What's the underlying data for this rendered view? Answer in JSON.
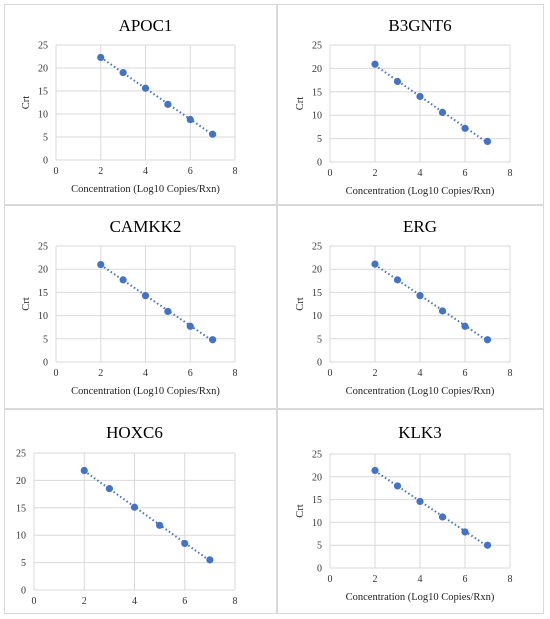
{
  "chart_data": [
    {
      "type": "scatter",
      "title": "APOC1",
      "xlabel": "Concentration (Log10 Copies/Rxn)",
      "ylabel": "Crt",
      "xlim": [
        0,
        8
      ],
      "ylim": [
        0,
        25
      ],
      "xticks": [
        "0",
        "2",
        "4",
        "6",
        "8"
      ],
      "yticks": [
        "0",
        "5",
        "10",
        "15",
        "20",
        "25"
      ],
      "grid": true,
      "trendline": "linear-dotted",
      "color": "#4472c4",
      "x": [
        2,
        3,
        4,
        5,
        6,
        7
      ],
      "y": [
        22.3,
        19.0,
        15.6,
        12.1,
        8.8,
        5.6
      ]
    },
    {
      "type": "scatter",
      "title": "B3GNT6",
      "xlabel": "Concentration (Log10 Copies/Rxn)",
      "ylabel": "Crt",
      "xlim": [
        0,
        8
      ],
      "ylim": [
        0,
        25
      ],
      "xticks": [
        "0",
        "2",
        "4",
        "6",
        "8"
      ],
      "yticks": [
        "0",
        "5",
        "10",
        "15",
        "20",
        "25"
      ],
      "grid": true,
      "trendline": "linear-dotted",
      "color": "#4472c4",
      "x": [
        2,
        3,
        4,
        5,
        6,
        7
      ],
      "y": [
        20.9,
        17.2,
        14.0,
        10.6,
        7.2,
        4.4
      ]
    },
    {
      "type": "scatter",
      "title": "CAMKK2",
      "xlabel": "Concentration (Log10 Copies/Rxn)",
      "ylabel": "Crt",
      "xlim": [
        0,
        8
      ],
      "ylim": [
        0,
        25
      ],
      "xticks": [
        "0",
        "2",
        "4",
        "6",
        "8"
      ],
      "yticks": [
        "0",
        "5",
        "10",
        "15",
        "20",
        "25"
      ],
      "grid": true,
      "trendline": "linear-dotted",
      "color": "#4472c4",
      "x": [
        2,
        3,
        4,
        5,
        6,
        7
      ],
      "y": [
        21.0,
        17.7,
        14.3,
        10.9,
        7.7,
        4.8
      ]
    },
    {
      "type": "scatter",
      "title": "ERG",
      "xlabel": "Concentration (Log10 Copies/Rxn)",
      "ylabel": "Crt",
      "xlim": [
        0,
        8
      ],
      "ylim": [
        0,
        25
      ],
      "xticks": [
        "0",
        "2",
        "4",
        "6",
        "8"
      ],
      "yticks": [
        "0",
        "5",
        "10",
        "15",
        "20",
        "25"
      ],
      "grid": true,
      "trendline": "linear-dotted",
      "color": "#4472c4",
      "x": [
        2,
        3,
        4,
        5,
        6,
        7
      ],
      "y": [
        21.1,
        17.7,
        14.3,
        11.0,
        7.7,
        4.8
      ]
    },
    {
      "type": "scatter",
      "title": "HOXC6",
      "xlabel": "",
      "ylabel": "",
      "xlim": [
        0,
        8
      ],
      "ylim": [
        0,
        25
      ],
      "xticks": [
        "0",
        "2",
        "4",
        "6",
        "8"
      ],
      "yticks": [
        "0",
        "5",
        "10",
        "15",
        "20",
        "25"
      ],
      "grid": true,
      "trendline": "linear-dotted",
      "color": "#4472c4",
      "x": [
        2,
        3,
        4,
        5,
        6,
        7
      ],
      "y": [
        21.8,
        18.5,
        15.1,
        11.8,
        8.5,
        5.5
      ]
    },
    {
      "type": "scatter",
      "title": "KLK3",
      "xlabel": "Concentration (Log10 Copies/Rxn)",
      "ylabel": "Crt",
      "xlim": [
        0,
        8
      ],
      "ylim": [
        0,
        25
      ],
      "xticks": [
        "0",
        "2",
        "4",
        "6",
        "8"
      ],
      "yticks": [
        "0",
        "5",
        "10",
        "15",
        "20",
        "25"
      ],
      "grid": true,
      "trendline": "linear-dotted",
      "color": "#4472c4",
      "x": [
        2,
        3,
        4,
        5,
        6,
        7
      ],
      "y": [
        21.4,
        18.0,
        14.6,
        11.2,
        7.9,
        5.0
      ]
    }
  ]
}
